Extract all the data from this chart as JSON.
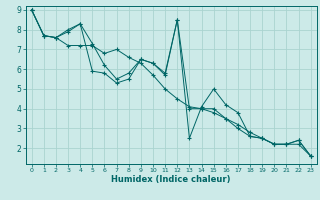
{
  "xlabel": "Humidex (Indice chaleur)",
  "bg_color": "#cceae8",
  "line_color": "#006666",
  "grid_color": "#aad4d0",
  "xlim": [
    -0.5,
    23.5
  ],
  "ylim": [
    1.2,
    9.2
  ],
  "yticks": [
    2,
    3,
    4,
    5,
    6,
    7,
    8,
    9
  ],
  "xticks": [
    0,
    1,
    2,
    3,
    4,
    5,
    6,
    7,
    8,
    9,
    10,
    11,
    12,
    13,
    14,
    15,
    16,
    17,
    18,
    19,
    20,
    21,
    22,
    23
  ],
  "series": [
    {
      "x": [
        0,
        1,
        2,
        3,
        4,
        5,
        6,
        7,
        8,
        9,
        10,
        11,
        12,
        13,
        14,
        15,
        16,
        17,
        18,
        19,
        20,
        21,
        22,
        23
      ],
      "y": [
        9.0,
        7.7,
        7.6,
        7.9,
        8.3,
        5.9,
        5.8,
        5.3,
        5.5,
        6.5,
        6.3,
        5.7,
        8.5,
        2.5,
        4.1,
        5.0,
        4.2,
        3.8,
        2.6,
        2.5,
        2.2,
        2.2,
        2.4,
        1.6
      ]
    },
    {
      "x": [
        0,
        1,
        2,
        3,
        4,
        5,
        6,
        7,
        8,
        9,
        10,
        11,
        12,
        13,
        14,
        15,
        16,
        17,
        18,
        19,
        20,
        21,
        22,
        23
      ],
      "y": [
        9.0,
        7.7,
        7.6,
        7.2,
        7.2,
        7.2,
        6.8,
        7.0,
        6.6,
        6.3,
        5.7,
        5.0,
        4.5,
        4.1,
        4.0,
        3.8,
        3.5,
        3.2,
        2.8,
        2.5,
        2.2,
        2.2,
        2.2,
        1.6
      ]
    },
    {
      "x": [
        0,
        1,
        2,
        3,
        4,
        5,
        6,
        7,
        8,
        9,
        10,
        11,
        12,
        13,
        14,
        15,
        16,
        17,
        18,
        19,
        20,
        21,
        22,
        23
      ],
      "y": [
        9.0,
        7.7,
        7.6,
        8.0,
        8.3,
        7.3,
        6.2,
        5.5,
        5.8,
        6.5,
        6.3,
        5.8,
        8.5,
        4.0,
        4.0,
        4.0,
        3.5,
        3.0,
        2.6,
        2.5,
        2.2,
        2.2,
        2.4,
        1.6
      ]
    }
  ]
}
